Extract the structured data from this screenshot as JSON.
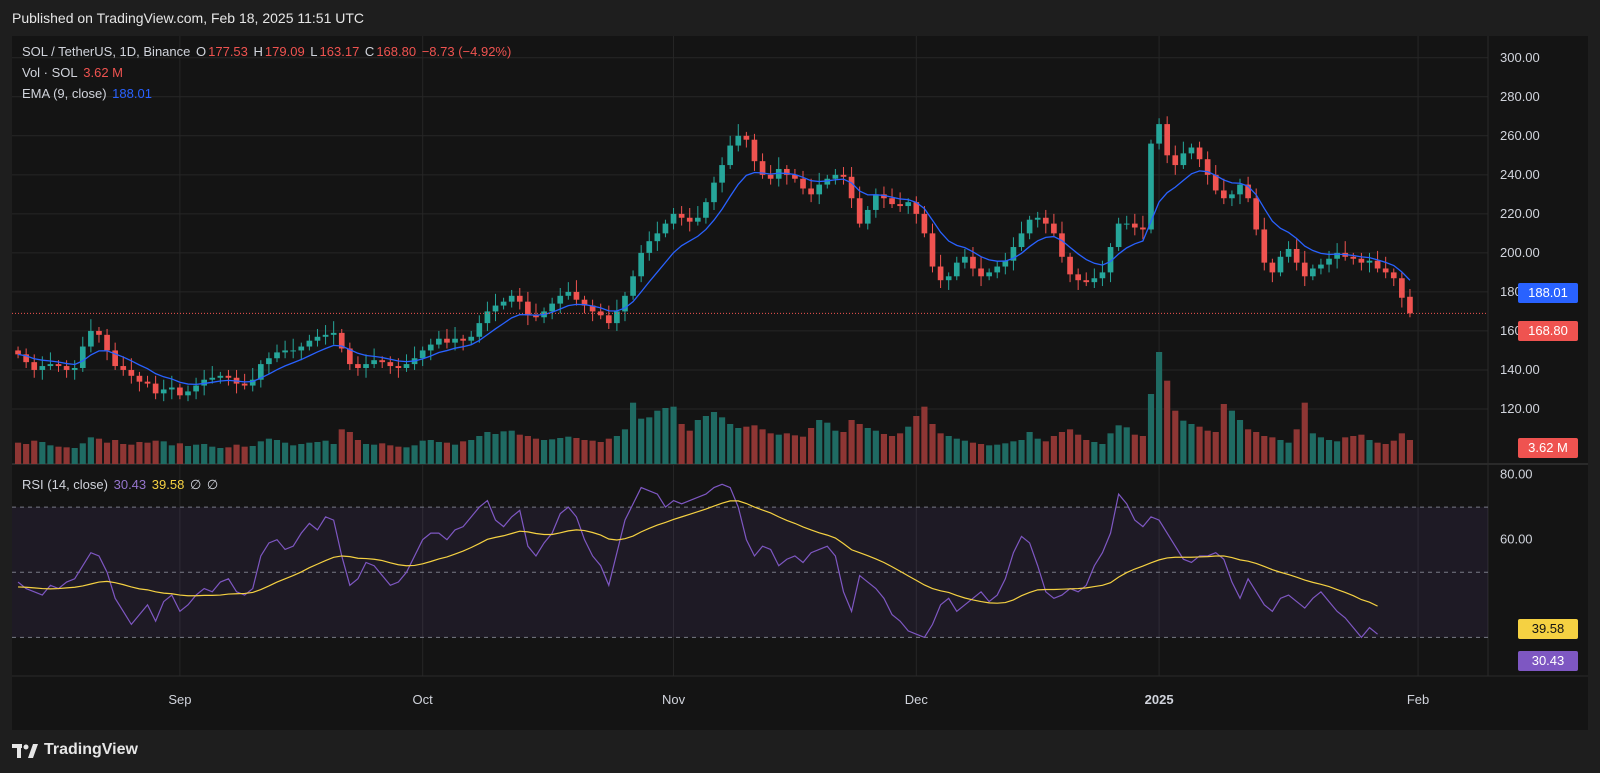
{
  "header": {
    "published": "Published on TradingView.com, Feb 18, 2025 11:51 UTC"
  },
  "legend": {
    "symbol": "SOL / TetherUS, 1D, Binance",
    "o_label": "O",
    "o": "177.53",
    "h_label": "H",
    "h": "179.09",
    "l_label": "L",
    "l": "163.17",
    "c_label": "C",
    "c": "168.80",
    "change": "−8.73 (−4.92%)",
    "vol_label": "Vol · SOL",
    "vol": "3.62 M",
    "ema_label": "EMA (9, close)",
    "ema": "188.01",
    "rsi_label": "RSI (14, close)",
    "rsi": "30.43",
    "rsi_ma": "39.58",
    "rsi_na1": "∅",
    "rsi_na2": "∅"
  },
  "colors": {
    "up": "#26a69a",
    "down": "#ef5350",
    "ema": "#2962ff",
    "rsi": "#7e57c2",
    "rsi_ma": "#f5d142",
    "bg": "#141414",
    "grid": "#262626"
  },
  "footer": {
    "brand": "TradingView"
  },
  "chart_data": [
    {
      "type": "candlestick",
      "title": "SOL / TetherUS, 1D, Binance",
      "ylim": [
        100,
        305
      ],
      "y_ticks": [
        "300.00",
        "280.00",
        "260.00",
        "240.00",
        "220.00",
        "200.00",
        "180.00",
        "160.00",
        "140.00",
        "120.00"
      ],
      "x_ticks": [
        "Sep",
        "Oct",
        "Nov",
        "Dec",
        "2025",
        "Feb"
      ],
      "last_price_label": "168.80",
      "ema_label": "188.01",
      "volume_label": "3.62 M",
      "x_ticks_index": [
        20,
        50,
        81,
        111,
        141,
        173
      ],
      "close": [
        148,
        144,
        140,
        142,
        143,
        142,
        140,
        141,
        152,
        160,
        158,
        150,
        142,
        140,
        137,
        134,
        133,
        128,
        130,
        131,
        127,
        129,
        132,
        135,
        136,
        137,
        136,
        133,
        132,
        135,
        143,
        146,
        149,
        150,
        150,
        152,
        155,
        157,
        158,
        159,
        151,
        143,
        141,
        143,
        145,
        144,
        142,
        141,
        143,
        146,
        150,
        153,
        156,
        154,
        156,
        155,
        157,
        164,
        170,
        173,
        175,
        178,
        175,
        168,
        167,
        170,
        174,
        178,
        180,
        176,
        173,
        170,
        168,
        164,
        170,
        178,
        188,
        200,
        206,
        210,
        215,
        220,
        218,
        216,
        218,
        226,
        236,
        245,
        255,
        260,
        258,
        247,
        240,
        238,
        243,
        240,
        238,
        233,
        230,
        235,
        238,
        240,
        239,
        228,
        215,
        222,
        230,
        228,
        225,
        224,
        226,
        220,
        210,
        193,
        186,
        188,
        195,
        198,
        192,
        188,
        190,
        193,
        196,
        203,
        210,
        217,
        218,
        215,
        210,
        198,
        189,
        186,
        185,
        187,
        190,
        203,
        215,
        215,
        213,
        212,
        256,
        266,
        250,
        245,
        251,
        254,
        248,
        240,
        232,
        228,
        230,
        235,
        228,
        212,
        195,
        190,
        198,
        202,
        195,
        188,
        192,
        194,
        197,
        200,
        198,
        197,
        195,
        196,
        192,
        190,
        187,
        177,
        169
      ],
      "open": [
        150,
        148,
        144,
        140,
        142,
        143,
        142,
        140,
        141,
        152,
        160,
        158,
        150,
        142,
        140,
        137,
        134,
        133,
        128,
        130,
        131,
        127,
        129,
        132,
        135,
        136,
        137,
        136,
        133,
        132,
        135,
        143,
        146,
        149,
        150,
        150,
        152,
        155,
        157,
        158,
        159,
        151,
        143,
        141,
        143,
        145,
        144,
        142,
        141,
        143,
        146,
        150,
        153,
        156,
        154,
        156,
        155,
        157,
        164,
        170,
        173,
        175,
        178,
        175,
        168,
        167,
        170,
        174,
        178,
        180,
        176,
        173,
        170,
        168,
        164,
        170,
        178,
        188,
        200,
        206,
        210,
        215,
        220,
        218,
        216,
        218,
        226,
        236,
        245,
        255,
        260,
        258,
        247,
        240,
        238,
        243,
        240,
        238,
        233,
        230,
        235,
        238,
        240,
        239,
        228,
        215,
        222,
        230,
        228,
        225,
        224,
        226,
        220,
        210,
        193,
        186,
        188,
        195,
        198,
        192,
        188,
        190,
        193,
        196,
        203,
        210,
        217,
        218,
        215,
        210,
        198,
        189,
        186,
        185,
        187,
        190,
        203,
        215,
        215,
        213,
        212,
        256,
        266,
        250,
        245,
        251,
        254,
        248,
        240,
        232,
        228,
        230,
        235,
        228,
        212,
        195,
        190,
        198,
        202,
        195,
        188,
        192,
        194,
        197,
        200,
        198,
        197,
        195,
        196,
        192,
        190,
        187,
        177.5
      ],
      "volume": [
        3.2,
        3.0,
        3.5,
        3.3,
        2.8,
        2.6,
        2.5,
        2.4,
        3.1,
        4.0,
        3.8,
        3.2,
        3.6,
        3.0,
        2.9,
        3.3,
        3.2,
        3.5,
        3.4,
        2.8,
        3.1,
        2.7,
        2.9,
        3.0,
        2.6,
        2.4,
        2.5,
        2.9,
        2.6,
        2.7,
        3.4,
        3.8,
        3.6,
        3.2,
        2.8,
        3.0,
        3.2,
        3.3,
        3.5,
        3.0,
        5.2,
        4.8,
        3.6,
        3.0,
        2.9,
        3.1,
        2.8,
        2.6,
        2.5,
        2.8,
        3.5,
        3.6,
        3.3,
        3.2,
        2.9,
        3.4,
        3.6,
        4.2,
        4.8,
        4.5,
        4.9,
        5.0,
        4.4,
        4.2,
        3.8,
        3.6,
        3.7,
        3.9,
        4.1,
        3.9,
        3.6,
        3.5,
        3.3,
        3.8,
        4.2,
        5.2,
        9.2,
        6.8,
        7.0,
        8.0,
        8.4,
        8.6,
        6.0,
        5.0,
        6.6,
        7.2,
        7.8,
        7.0,
        6.0,
        5.4,
        5.6,
        5.8,
        5.2,
        4.6,
        4.4,
        4.6,
        4.3,
        4.1,
        5.4,
        6.6,
        6.2,
        5.0,
        4.8,
        6.6,
        6.0,
        5.4,
        5.0,
        4.5,
        4.2,
        4.6,
        5.6,
        7.2,
        8.6,
        6.0,
        4.6,
        4.2,
        3.8,
        3.5,
        3.2,
        3.0,
        2.8,
        2.9,
        3.1,
        3.4,
        3.6,
        4.8,
        3.8,
        3.4,
        4.2,
        4.8,
        5.2,
        4.4,
        3.6,
        3.3,
        3.0,
        4.6,
        5.8,
        5.5,
        4.4,
        4.2,
        10.5,
        16.8,
        12.5,
        8.0,
        6.5,
        6.0,
        5.6,
        5.0,
        4.8,
        9.0,
        8.0,
        6.6,
        5.2,
        4.8,
        4.2,
        4.0,
        3.6,
        3.2,
        5.2,
        9.2,
        4.6,
        4.0,
        3.6,
        3.4,
        4.0,
        4.2,
        4.4,
        3.6,
        3.2,
        3.0,
        3.5,
        4.6,
        3.6
      ]
    },
    {
      "type": "line",
      "title": "RSI (14, close)",
      "ylim": [
        20,
        82
      ],
      "y_ticks": [
        "80.00",
        "60.00"
      ],
      "levels": [
        70,
        50,
        30
      ],
      "series": [
        {
          "name": "RSI",
          "values": [
            47,
            45,
            44,
            43,
            46,
            45,
            47,
            48,
            52,
            56,
            55,
            50,
            42,
            38,
            34,
            37,
            40,
            35,
            41,
            43,
            38,
            40,
            43,
            45,
            44,
            47,
            48,
            44,
            43,
            45,
            55,
            59,
            60,
            57,
            58,
            62,
            65,
            63,
            67,
            66,
            55,
            46,
            48,
            53,
            52,
            49,
            46,
            47,
            50,
            55,
            60,
            62,
            62,
            60,
            63,
            64,
            67,
            70,
            72,
            66,
            64,
            67,
            69,
            58,
            55,
            59,
            62,
            68,
            70,
            67,
            60,
            55,
            52,
            46,
            56,
            66,
            71,
            76,
            75,
            74,
            70,
            72,
            71,
            72,
            73,
            74,
            76,
            77,
            76,
            70,
            60,
            55,
            58,
            57,
            52,
            54,
            55,
            53,
            56,
            57,
            58,
            55,
            44,
            38,
            49,
            47,
            45,
            42,
            37,
            35,
            32,
            31,
            30,
            34,
            40,
            42,
            38,
            40,
            42,
            44,
            41,
            43,
            48,
            56,
            61,
            59,
            52,
            44,
            42,
            43,
            45,
            44,
            46,
            52,
            56,
            62,
            74,
            71,
            66,
            64,
            67,
            66,
            62,
            58,
            54,
            53,
            55,
            55,
            56,
            54,
            47,
            42,
            48,
            44,
            40,
            38,
            42,
            43,
            41,
            39,
            42,
            44,
            41,
            38,
            36,
            33,
            30,
            33,
            31
          ]
        },
        {
          "name": "RSI-based MA",
          "values": [
            45.5,
            45.4,
            45.2,
            45.0,
            44.9,
            45.0,
            45.2,
            45.4,
            45.8,
            46.4,
            47.0,
            47.2,
            46.8,
            46.2,
            45.5,
            44.9,
            44.6,
            44.0,
            43.6,
            43.4,
            43.0,
            42.8,
            42.8,
            42.9,
            42.9,
            43.0,
            43.3,
            43.4,
            43.5,
            43.8,
            44.7,
            45.8,
            47.0,
            48.0,
            49.0,
            50.1,
            51.4,
            52.5,
            53.6,
            54.6,
            55.0,
            54.8,
            54.3,
            54.2,
            54.0,
            53.6,
            52.9,
            52.3,
            52.0,
            52.1,
            52.6,
            53.3,
            54.1,
            54.7,
            55.6,
            56.5,
            57.6,
            58.8,
            60.1,
            60.7,
            61.2,
            61.9,
            62.6,
            62.4,
            61.9,
            61.6,
            61.6,
            62.1,
            62.7,
            63.0,
            62.8,
            62.2,
            61.4,
            60.2,
            59.9,
            60.3,
            61.1,
            62.4,
            63.5,
            64.5,
            65.3,
            66.2,
            67.0,
            67.8,
            68.6,
            69.4,
            70.3,
            71.2,
            71.9,
            71.9,
            71.1,
            70.0,
            69.1,
            68.2,
            67.0,
            65.9,
            65.0,
            63.9,
            63.0,
            62.1,
            61.4,
            60.5,
            58.8,
            56.9,
            56.0,
            55.1,
            54.1,
            53.0,
            51.7,
            50.3,
            48.9,
            47.5,
            46.1,
            45.0,
            44.3,
            43.8,
            42.9,
            42.1,
            41.5,
            41.0,
            40.6,
            40.5,
            40.7,
            41.5,
            42.8,
            43.8,
            44.6,
            44.7,
            44.7,
            44.8,
            44.9,
            45.0,
            45.2,
            45.6,
            46.0,
            46.8,
            48.5,
            49.9,
            51.0,
            51.9,
            52.9,
            53.8,
            54.4,
            54.6,
            54.6,
            54.6,
            54.7,
            54.8,
            55.0,
            55.0,
            54.5,
            53.8,
            53.4,
            52.7,
            51.8,
            50.8,
            50.0,
            49.3,
            48.5,
            47.6,
            46.9,
            46.3,
            45.6,
            44.7,
            43.8,
            42.8,
            41.6,
            40.8,
            39.6
          ]
        }
      ],
      "last_rsi_label": "30.43",
      "last_ma_label": "39.58"
    }
  ]
}
